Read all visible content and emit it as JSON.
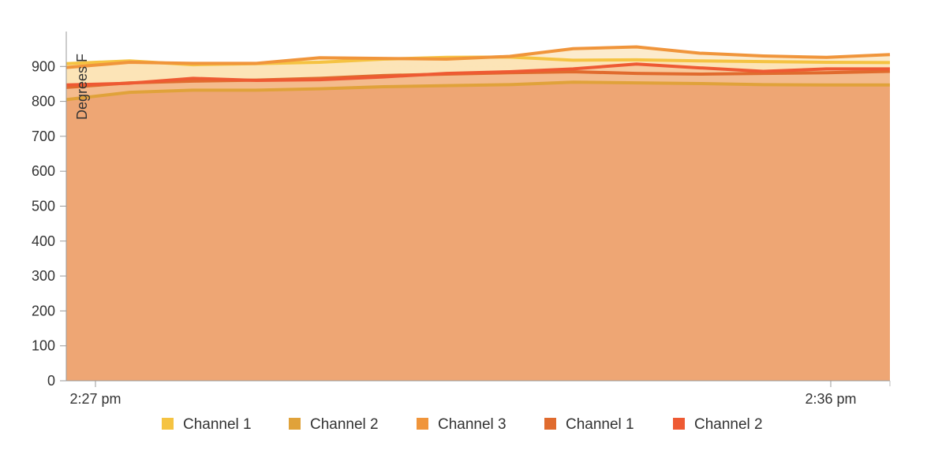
{
  "chart_data": {
    "type": "area",
    "title": "",
    "xlabel": "",
    "ylabel": "Degrees F",
    "ylim": [
      0,
      1000
    ],
    "yticks": [
      0,
      100,
      200,
      300,
      400,
      500,
      600,
      700,
      800,
      900
    ],
    "x_tick_labels": [
      "2:27 pm",
      "2:36 pm"
    ],
    "x": [
      0,
      1,
      2,
      3,
      4,
      5,
      6,
      7,
      8,
      9,
      10,
      11,
      12,
      13
    ],
    "grid": true,
    "legend_position": "bottom",
    "series": [
      {
        "name": "Channel 1",
        "color": "#f5c342",
        "values": [
          908,
          916,
          905,
          908,
          912,
          921,
          926,
          927,
          918,
          919,
          916,
          914,
          912,
          911
        ]
      },
      {
        "name": "Channel 2",
        "color": "#e0a23a",
        "values": [
          805,
          826,
          832,
          832,
          836,
          842,
          845,
          848,
          855,
          853,
          851,
          848,
          847,
          847
        ]
      },
      {
        "name": "Channel 3",
        "color": "#f0953b",
        "values": [
          897,
          912,
          909,
          909,
          925,
          923,
          921,
          929,
          951,
          956,
          938,
          930,
          926,
          934
        ]
      },
      {
        "name": "Channel 1",
        "color": "#e06b2e",
        "values": [
          840,
          853,
          858,
          861,
          866,
          874,
          878,
          882,
          885,
          880,
          878,
          880,
          882,
          886
        ]
      },
      {
        "name": "Channel 2",
        "color": "#ee5a33",
        "values": [
          847,
          852,
          866,
          860,
          862,
          870,
          880,
          885,
          893,
          907,
          896,
          886,
          893,
          893
        ]
      }
    ]
  }
}
